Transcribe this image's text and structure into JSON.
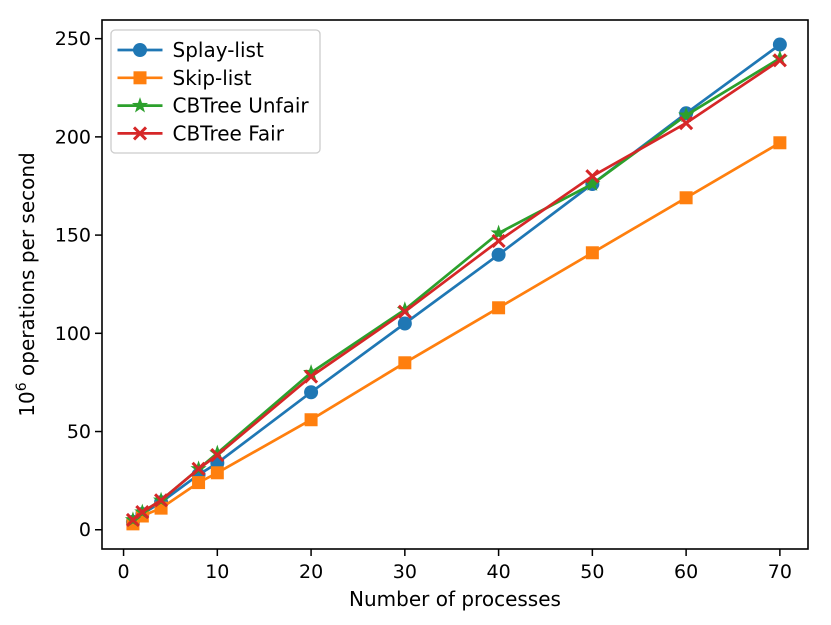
{
  "figure": {
    "background": "#ffffff",
    "text_color": "#000000",
    "spine_color": "#000000",
    "legend_border_color": "#cccccc"
  },
  "chart_data": {
    "type": "line",
    "title": "",
    "xlabel": "Number of processes",
    "ylabel": {
      "base": "10",
      "superscript": "6",
      "rest": " operations per second"
    },
    "x": [
      1,
      2,
      4,
      8,
      10,
      20,
      30,
      40,
      50,
      60,
      70
    ],
    "series": [
      {
        "name": "Splay-list",
        "color": "#1f77b4",
        "marker": "circle",
        "values": [
          4,
          8,
          14,
          28,
          34,
          70,
          105,
          140,
          176,
          212,
          247
        ]
      },
      {
        "name": "Skip-list",
        "color": "#ff7f0e",
        "marker": "square",
        "values": [
          3,
          7,
          11,
          24,
          29,
          56,
          85,
          113,
          141,
          169,
          197
        ]
      },
      {
        "name": "CBTree Unfair",
        "color": "#2ca02c",
        "marker": "star",
        "values": [
          5,
          9,
          15,
          31,
          39,
          80,
          112,
          151,
          176,
          211,
          240
        ]
      },
      {
        "name": "CBTree Fair",
        "color": "#d62728",
        "marker": "x",
        "values": [
          5,
          9,
          15,
          31,
          38,
          78,
          111,
          147,
          180,
          207,
          239
        ]
      }
    ],
    "x_ticks": [
      0,
      10,
      20,
      30,
      40,
      50,
      60,
      70
    ],
    "y_ticks": [
      0,
      50,
      100,
      150,
      200,
      250
    ],
    "xlim": [
      -2.3,
      73.0
    ],
    "ylim": [
      -9.8,
      259.5
    ],
    "grid": false,
    "legend_position": "upper-left"
  }
}
